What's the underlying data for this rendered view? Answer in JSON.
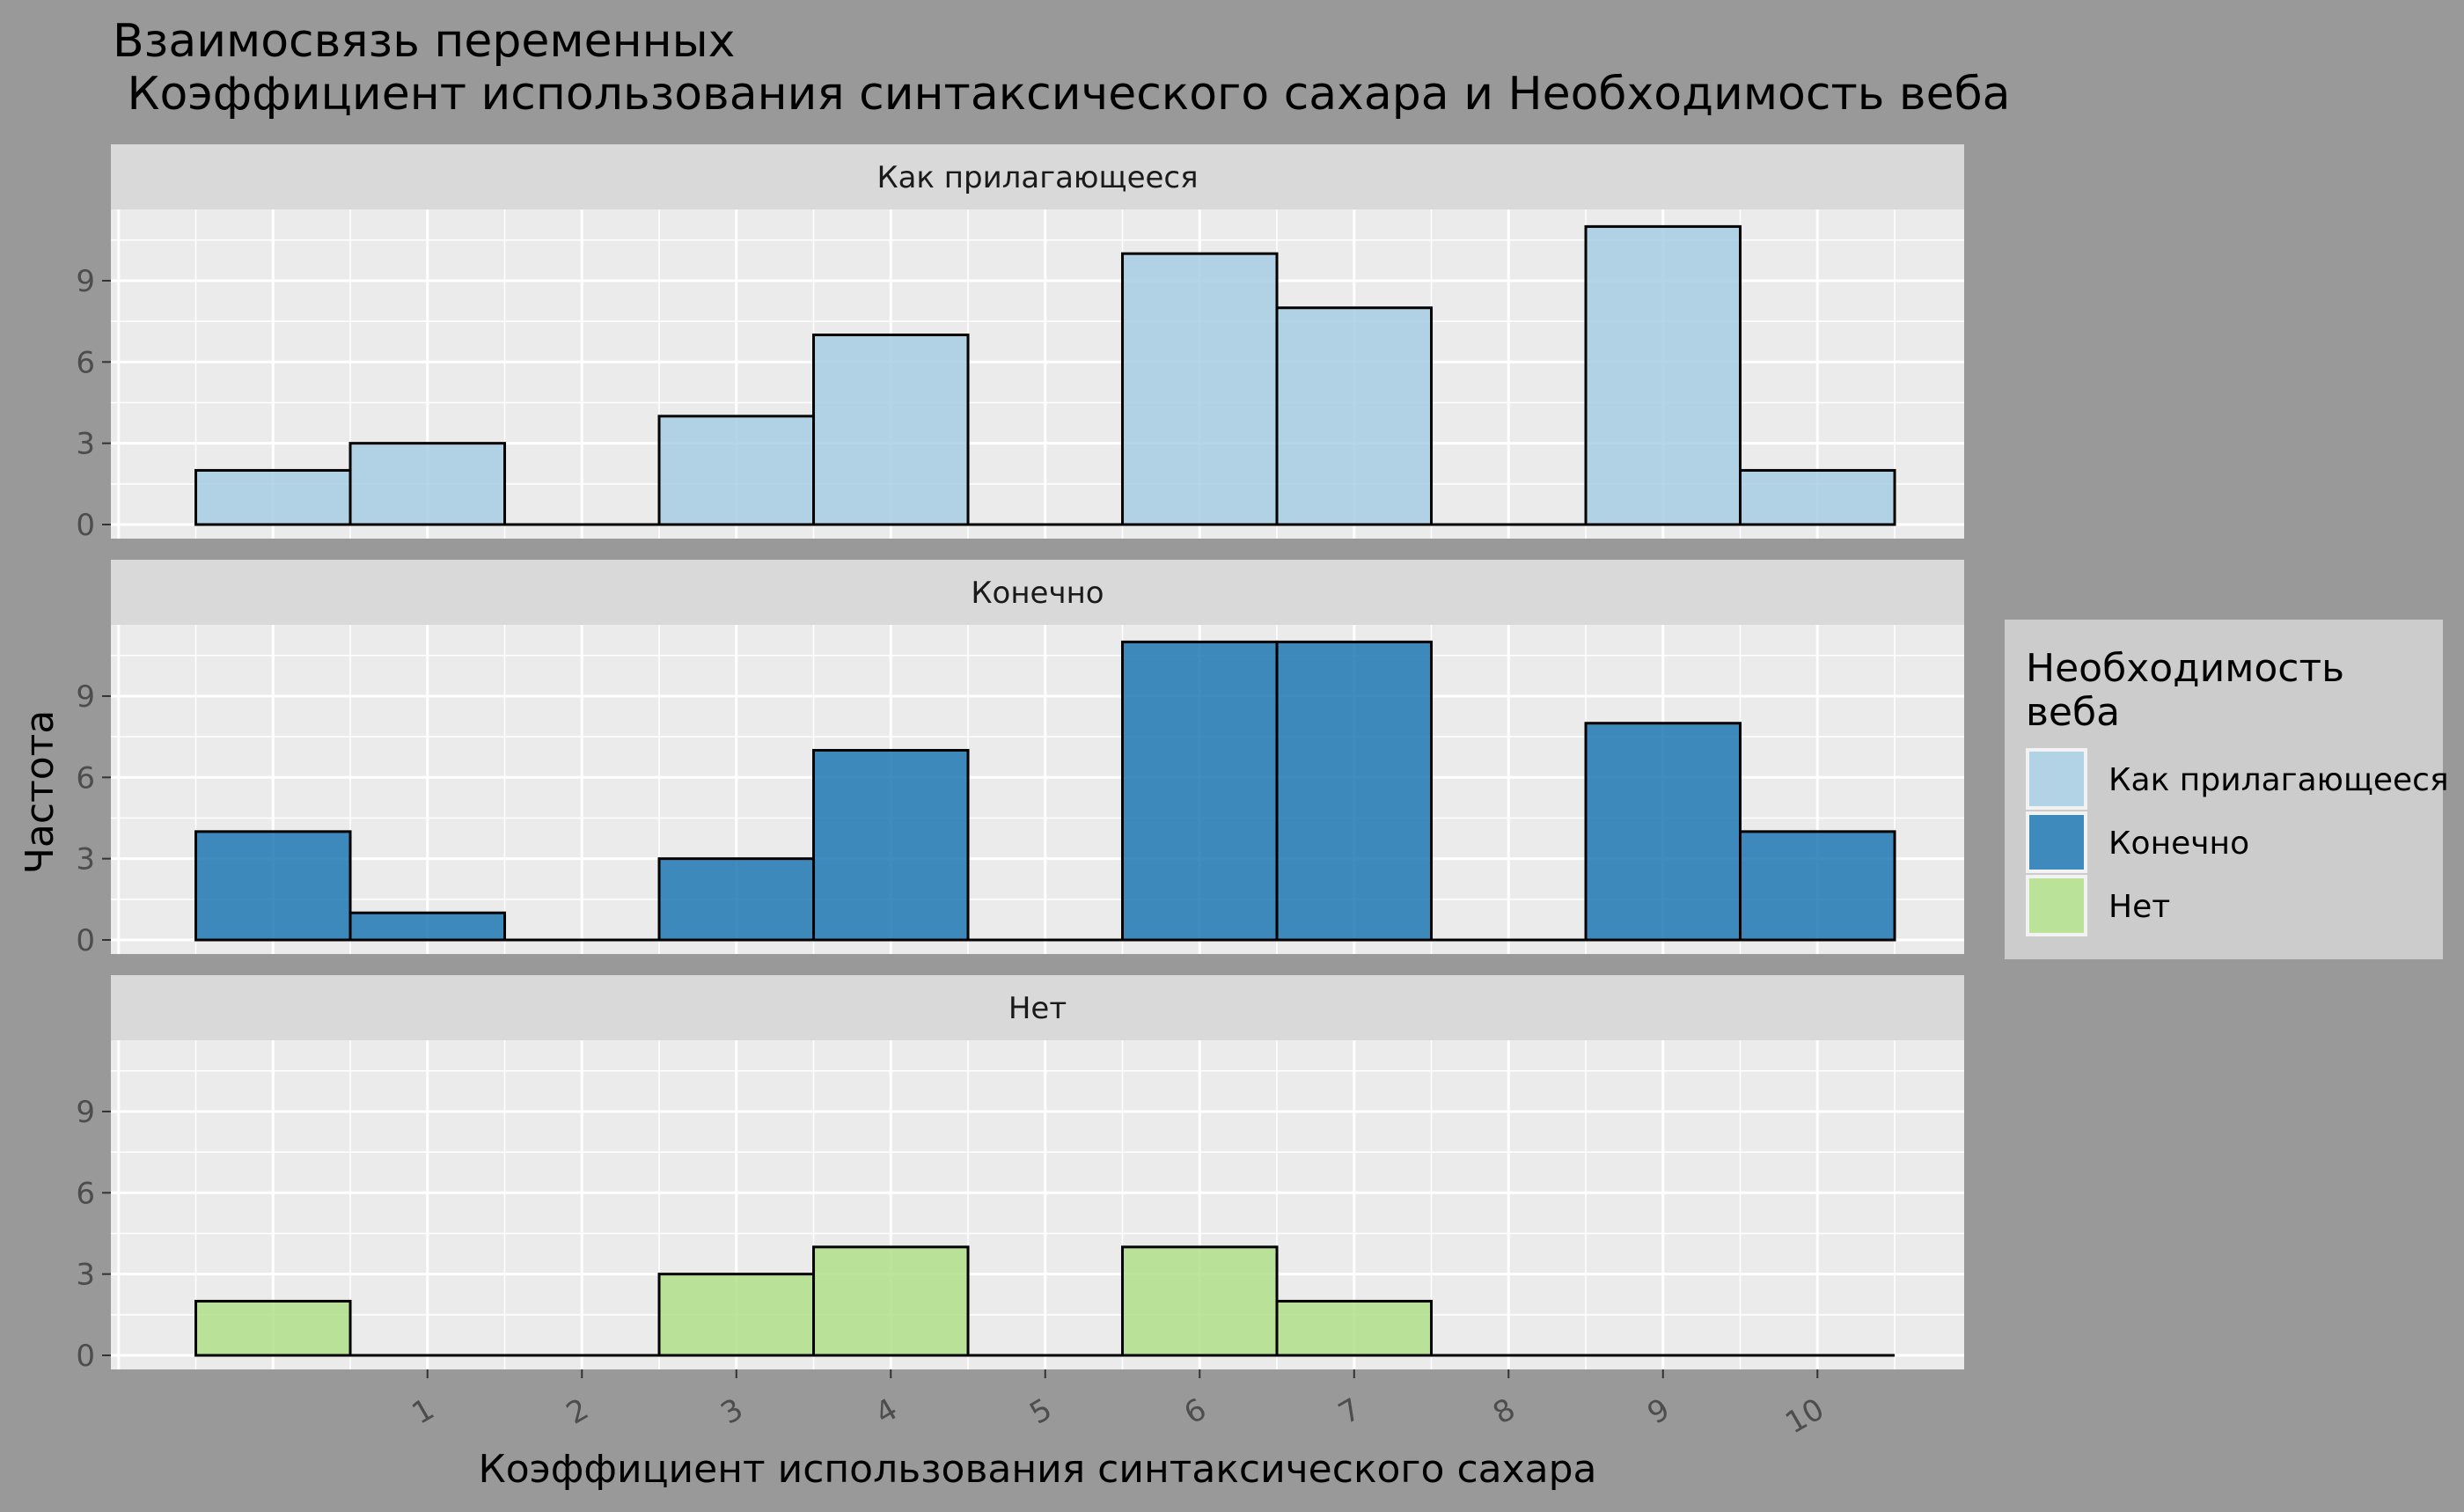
{
  "chart_data": {
    "type": "bar",
    "title_line1": "Взаимосвязь переменных",
    "title_line2": " Коэффициент использования синтаксического сахара и Необходимость веба",
    "xlabel": "Коэффициент использования синтаксического сахара",
    "ylabel": "Частота",
    "x_ticks": [
      1,
      2,
      3,
      4,
      5,
      6,
      7,
      8,
      9,
      10
    ],
    "y_ticks": [
      0,
      3,
      6,
      9
    ],
    "ylim": [
      0,
      11.5
    ],
    "xlim": [
      -1.05,
      10.95
    ],
    "bin_centers": [
      0,
      1,
      2,
      3,
      4,
      5,
      6,
      7,
      8,
      9,
      10
    ],
    "legend_title_line1": "Необходимость",
    "legend_title_line2": "веба",
    "legend_position": "right",
    "grid": true,
    "facets": [
      {
        "name": "Как прилагающееся",
        "color": "#A6CEE3",
        "values": [
          2,
          3,
          0,
          4,
          7,
          0,
          10,
          8,
          0,
          11,
          2
        ]
      },
      {
        "name": "Конечно",
        "color": "#1F78B4",
        "values": [
          4,
          1,
          0,
          3,
          7,
          0,
          11,
          11,
          0,
          8,
          4
        ]
      },
      {
        "name": "Нет",
        "color": "#B2DF8A",
        "values": [
          2,
          0,
          0,
          3,
          4,
          0,
          4,
          2,
          0,
          0,
          0
        ]
      }
    ]
  }
}
